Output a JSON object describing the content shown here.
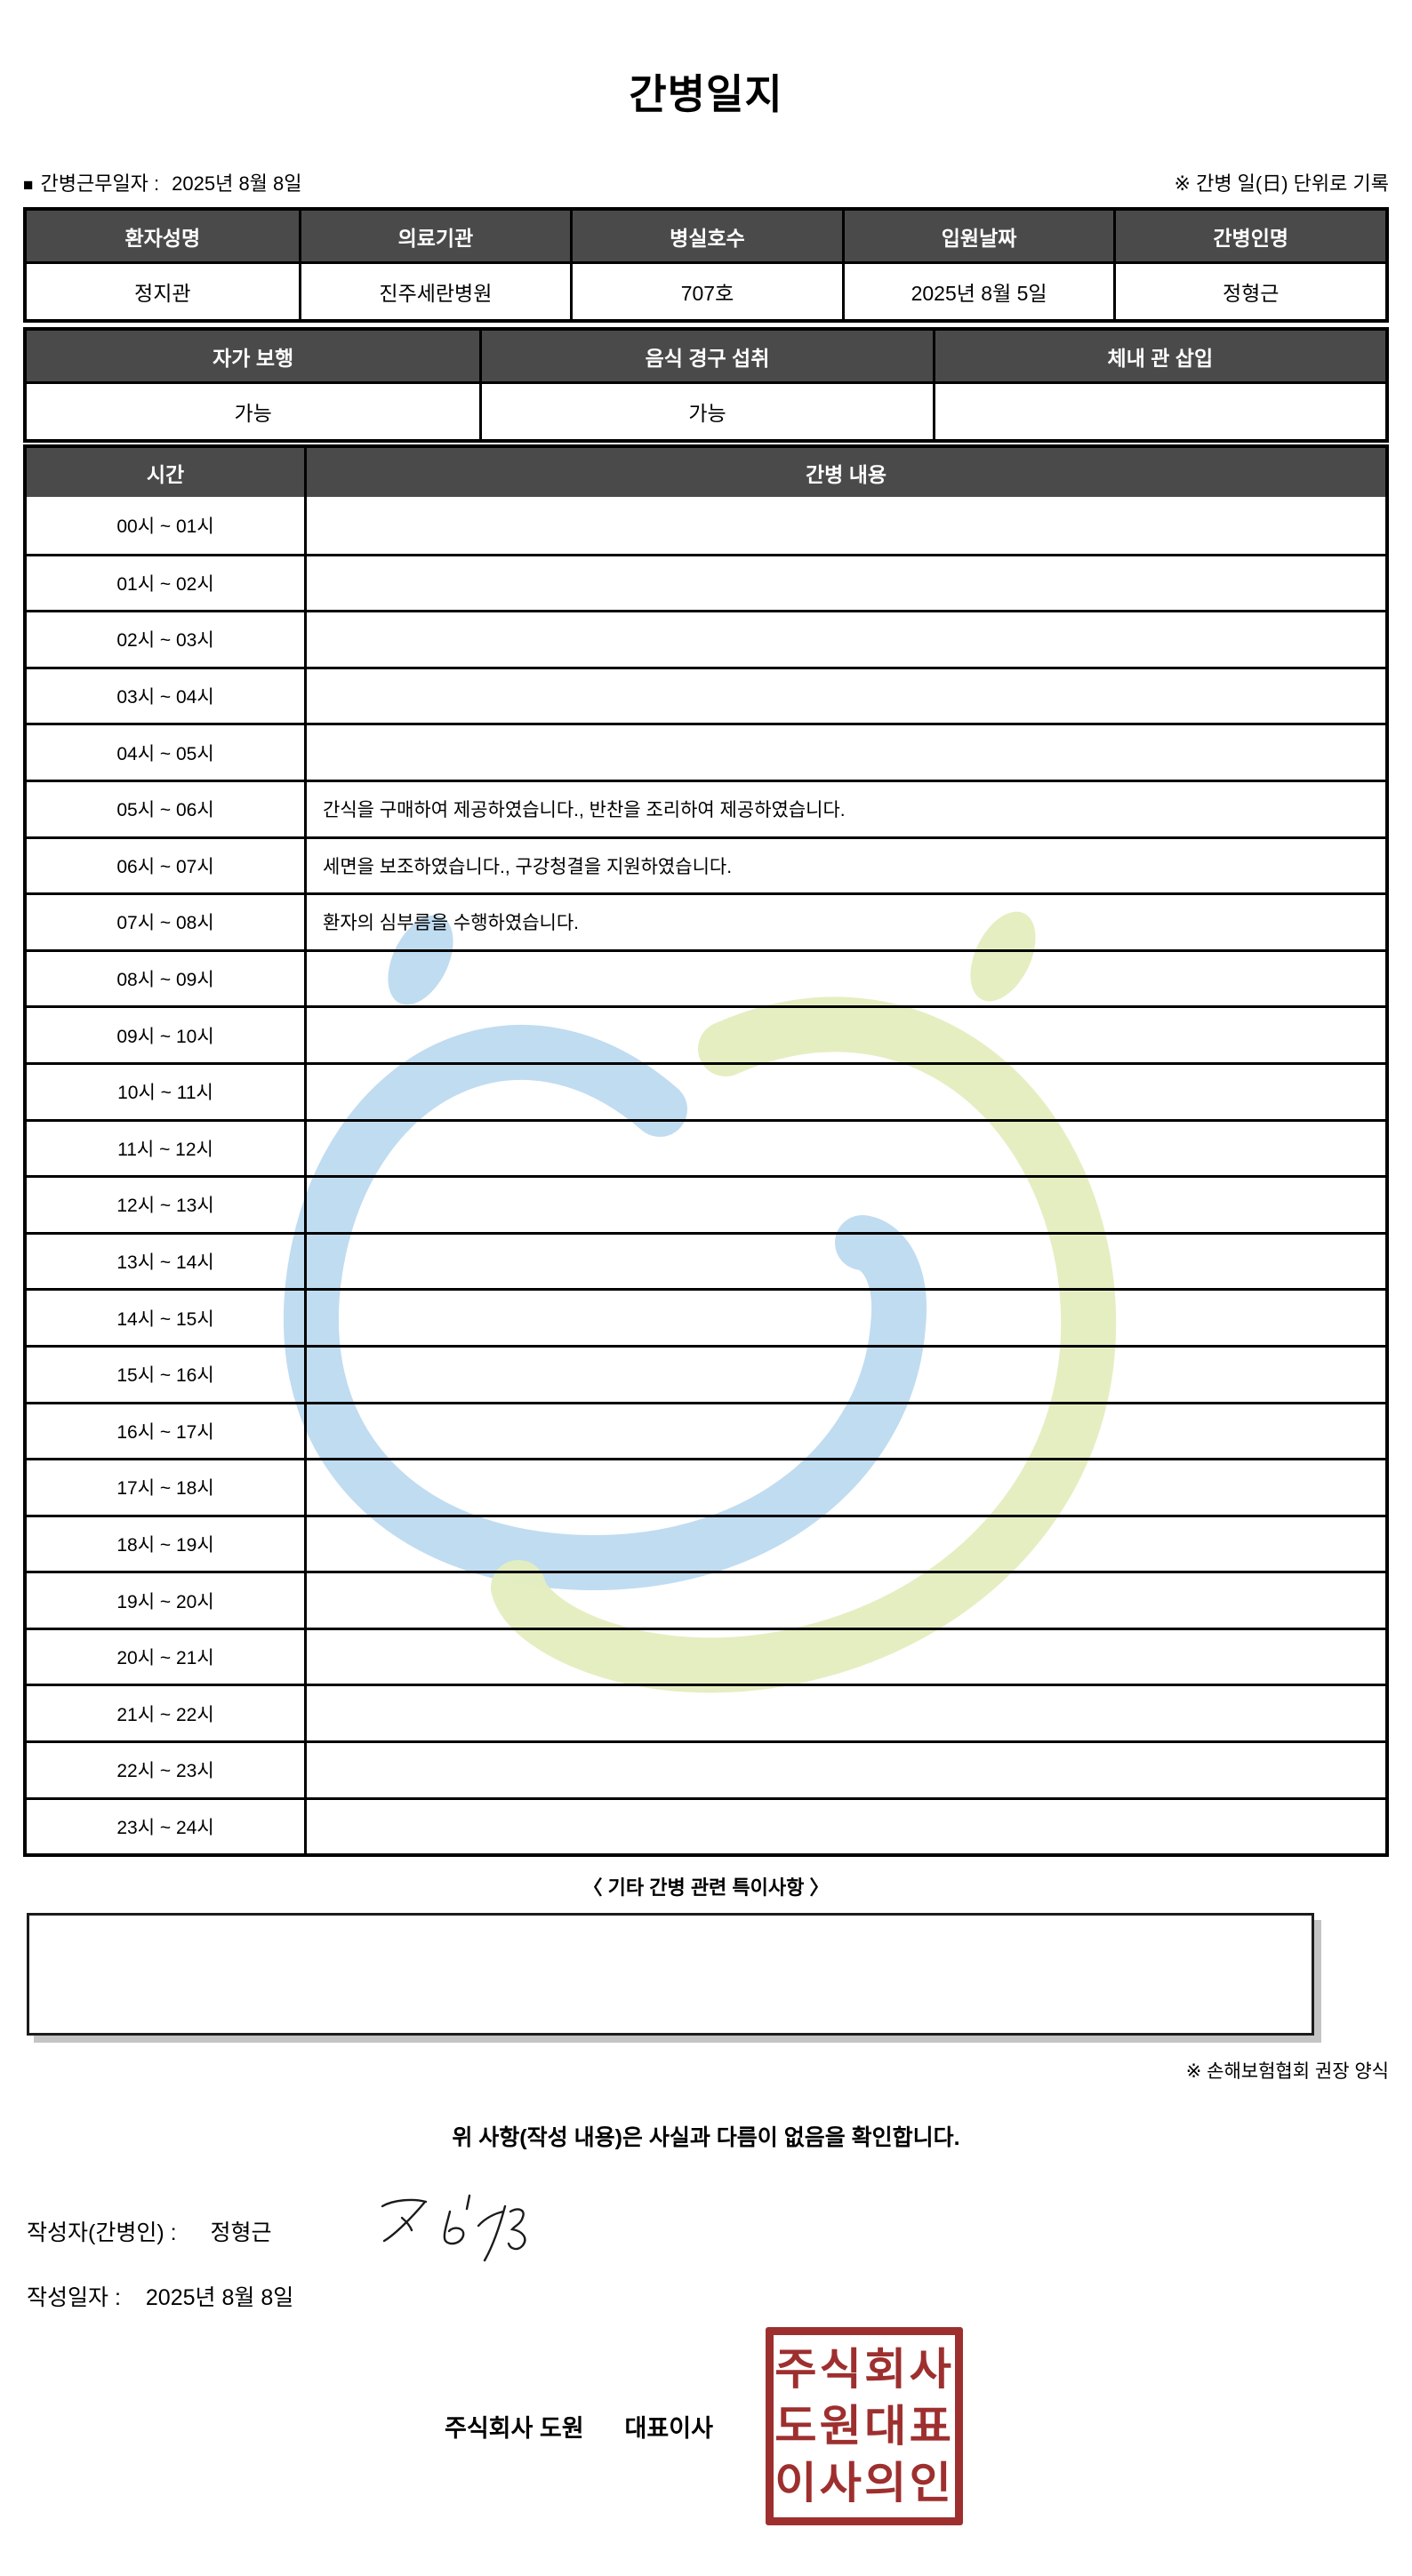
{
  "title": "간병일지",
  "meta": {
    "bullet": "■",
    "work_date_label": "간병근무일자 :",
    "work_date": "2025년 8월 8일",
    "unit_note": "※ 간병 일(日) 단위로 기록"
  },
  "patient_table": {
    "headers": [
      "환자성명",
      "의료기관",
      "병실호수",
      "입원날짜",
      "간병인명"
    ],
    "values": [
      "정지관",
      "진주세란병원",
      "707호",
      "2025년 8월 5일",
      "정형근"
    ]
  },
  "status_table": {
    "headers": [
      "자가 보행",
      "음식 경구 섭취",
      "체내 관 삽입"
    ],
    "values": [
      "가능",
      "가능",
      ""
    ]
  },
  "care_table": {
    "time_header": "시간",
    "content_header": "간병 내용",
    "rows": [
      {
        "time": "00시 ~ 01시",
        "content": ""
      },
      {
        "time": "01시 ~ 02시",
        "content": ""
      },
      {
        "time": "02시 ~ 03시",
        "content": ""
      },
      {
        "time": "03시 ~ 04시",
        "content": ""
      },
      {
        "time": "04시 ~ 05시",
        "content": ""
      },
      {
        "time": "05시 ~ 06시",
        "content": "간식을 구매하여 제공하였습니다., 반찬을 조리하여 제공하였습니다."
      },
      {
        "time": "06시 ~ 07시",
        "content": "세면을 보조하였습니다., 구강청결을 지원하였습니다."
      },
      {
        "time": "07시 ~ 08시",
        "content": "환자의 심부름을 수행하였습니다."
      },
      {
        "time": "08시 ~ 09시",
        "content": ""
      },
      {
        "time": "09시 ~ 10시",
        "content": ""
      },
      {
        "time": "10시 ~ 11시",
        "content": ""
      },
      {
        "time": "11시 ~ 12시",
        "content": ""
      },
      {
        "time": "12시 ~ 13시",
        "content": ""
      },
      {
        "time": "13시 ~ 14시",
        "content": ""
      },
      {
        "time": "14시 ~ 15시",
        "content": ""
      },
      {
        "time": "15시 ~ 16시",
        "content": ""
      },
      {
        "time": "16시 ~ 17시",
        "content": ""
      },
      {
        "time": "17시 ~ 18시",
        "content": ""
      },
      {
        "time": "18시 ~ 19시",
        "content": ""
      },
      {
        "time": "19시 ~ 20시",
        "content": ""
      },
      {
        "time": "20시 ~ 21시",
        "content": ""
      },
      {
        "time": "21시 ~ 22시",
        "content": ""
      },
      {
        "time": "22시 ~ 23시",
        "content": ""
      },
      {
        "time": "23시 ~ 24시",
        "content": ""
      }
    ]
  },
  "notes_section": {
    "title": "〈 기타 간병 관련 특이사항 〉",
    "content": "",
    "form_note": "※ 손해보험협회 권장 양식"
  },
  "footer": {
    "confirmation": "위 사항(작성 내용)은 사실과 다름이 없음을 확인합니다.",
    "writer_label": "작성자(간병인) :",
    "writer_name": "정형근",
    "date_label": "작성일자 :",
    "date_value": "2025년 8월 8일",
    "company_name": "주식회사 도원",
    "company_title": "대표이사",
    "stamp_lines": [
      "주식회사",
      "도원대표",
      "이사의인"
    ]
  },
  "colors": {
    "header_bg": "#4a4a4a",
    "border": "#000000",
    "stamp_red": "#9e2f2f",
    "watermark_blue": "#b9d8ef",
    "watermark_green": "#e4edbe"
  }
}
